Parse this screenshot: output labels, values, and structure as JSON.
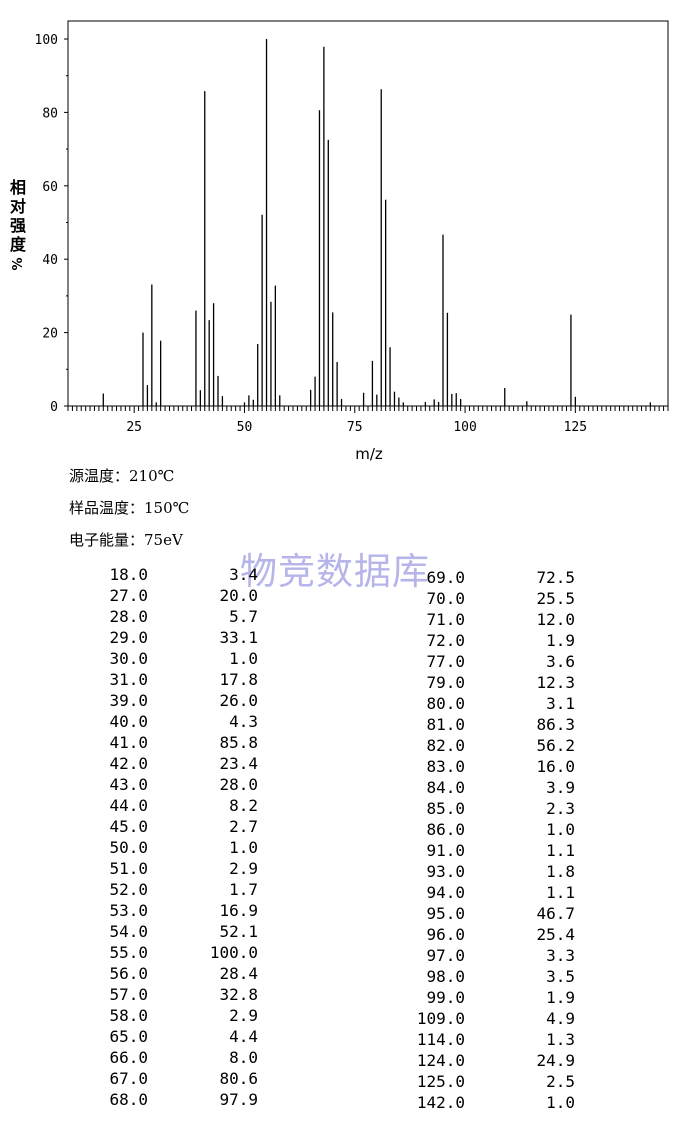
{
  "chart_data": {
    "type": "bar",
    "xlabel": "m/z",
    "ylabel": "相对强度/%",
    "xlim": [
      10,
      146
    ],
    "ylim": [
      0,
      105
    ],
    "xticks": [
      25,
      50,
      75,
      100,
      125
    ],
    "yticks": [
      0,
      20,
      40,
      60,
      80,
      100
    ],
    "x": [
      18.0,
      27.0,
      28.0,
      29.0,
      30.0,
      31.0,
      39.0,
      40.0,
      41.0,
      42.0,
      43.0,
      44.0,
      45.0,
      50.0,
      51.0,
      52.0,
      53.0,
      54.0,
      55.0,
      56.0,
      57.0,
      58.0,
      65.0,
      66.0,
      67.0,
      68.0,
      69.0,
      70.0,
      71.0,
      72.0,
      77.0,
      79.0,
      80.0,
      81.0,
      82.0,
      83.0,
      84.0,
      85.0,
      86.0,
      91.0,
      93.0,
      94.0,
      95.0,
      96.0,
      97.0,
      98.0,
      99.0,
      109.0,
      114.0,
      124.0,
      125.0,
      142.0
    ],
    "values": [
      3.4,
      20.0,
      5.7,
      33.1,
      1.0,
      17.8,
      26.0,
      4.3,
      85.8,
      23.4,
      28.0,
      8.2,
      2.7,
      1.0,
      2.9,
      1.7,
      16.9,
      52.1,
      100.0,
      28.4,
      32.8,
      2.9,
      4.4,
      8.0,
      80.6,
      97.9,
      72.5,
      25.5,
      12.0,
      1.9,
      3.6,
      12.3,
      3.1,
      86.3,
      56.2,
      16.0,
      3.9,
      2.3,
      1.0,
      1.1,
      1.8,
      1.1,
      46.7,
      25.4,
      3.3,
      3.5,
      1.9,
      4.9,
      1.3,
      24.9,
      2.5,
      1.0
    ]
  },
  "axis": {
    "ylabel_chars": [
      "相",
      "对",
      "强",
      "度",
      "%"
    ],
    "xlabel": "m/z"
  },
  "meta": {
    "source_temp": "源温度：210℃",
    "sample_temp": "样品温度：150℃",
    "electron_energy": "电子能量：75eV"
  },
  "watermark": "物竞数据库",
  "peak_table": {
    "left": [
      [
        "18.0",
        "3.4"
      ],
      [
        "27.0",
        "20.0"
      ],
      [
        "28.0",
        "5.7"
      ],
      [
        "29.0",
        "33.1"
      ],
      [
        "30.0",
        "1.0"
      ],
      [
        "31.0",
        "17.8"
      ],
      [
        "39.0",
        "26.0"
      ],
      [
        "40.0",
        "4.3"
      ],
      [
        "41.0",
        "85.8"
      ],
      [
        "42.0",
        "23.4"
      ],
      [
        "43.0",
        "28.0"
      ],
      [
        "44.0",
        "8.2"
      ],
      [
        "45.0",
        "2.7"
      ],
      [
        "50.0",
        "1.0"
      ],
      [
        "51.0",
        "2.9"
      ],
      [
        "52.0",
        "1.7"
      ],
      [
        "53.0",
        "16.9"
      ],
      [
        "54.0",
        "52.1"
      ],
      [
        "55.0",
        "100.0"
      ],
      [
        "56.0",
        "28.4"
      ],
      [
        "57.0",
        "32.8"
      ],
      [
        "58.0",
        "2.9"
      ],
      [
        "65.0",
        "4.4"
      ],
      [
        "66.0",
        "8.0"
      ],
      [
        "67.0",
        "80.6"
      ],
      [
        "68.0",
        "97.9"
      ]
    ],
    "right": [
      [
        "69.0",
        "72.5"
      ],
      [
        "70.0",
        "25.5"
      ],
      [
        "71.0",
        "12.0"
      ],
      [
        "72.0",
        "1.9"
      ],
      [
        "77.0",
        "3.6"
      ],
      [
        "79.0",
        "12.3"
      ],
      [
        "80.0",
        "3.1"
      ],
      [
        "81.0",
        "86.3"
      ],
      [
        "82.0",
        "56.2"
      ],
      [
        "83.0",
        "16.0"
      ],
      [
        "84.0",
        "3.9"
      ],
      [
        "85.0",
        "2.3"
      ],
      [
        "86.0",
        "1.0"
      ],
      [
        "91.0",
        "1.1"
      ],
      [
        "93.0",
        "1.8"
      ],
      [
        "94.0",
        "1.1"
      ],
      [
        "95.0",
        "46.7"
      ],
      [
        "96.0",
        "25.4"
      ],
      [
        "97.0",
        "3.3"
      ],
      [
        "98.0",
        "3.5"
      ],
      [
        "99.0",
        "1.9"
      ],
      [
        "109.0",
        "4.9"
      ],
      [
        "114.0",
        "1.3"
      ],
      [
        "124.0",
        "24.9"
      ],
      [
        "125.0",
        "2.5"
      ],
      [
        "142.0",
        "1.0"
      ]
    ]
  }
}
